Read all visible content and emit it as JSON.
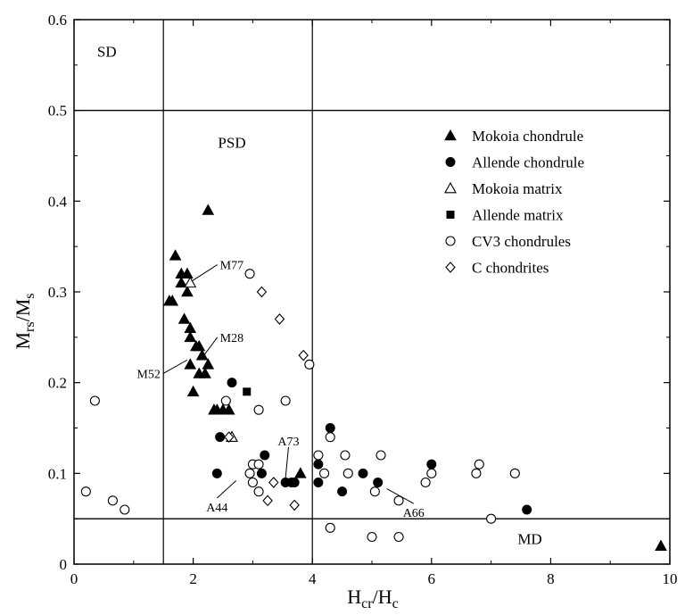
{
  "chart_data": {
    "type": "scatter",
    "xlabel": {
      "main": "H",
      "sub": "cr",
      "sep": "/H",
      "sub2": "c"
    },
    "ylabel": {
      "main": "M",
      "sub": "rs",
      "sep": "/M",
      "sub2": "s"
    },
    "xlim": [
      0,
      10
    ],
    "ylim": [
      0,
      0.6
    ],
    "x_ticks": [
      0,
      2,
      4,
      6,
      8,
      10
    ],
    "y_ticks": [
      0,
      0.1,
      0.2,
      0.3,
      0.4,
      0.5,
      0.6
    ],
    "x_tick_labels": [
      "0",
      "2",
      "4",
      "6",
      "8",
      "10"
    ],
    "y_tick_labels": [
      "0",
      "0.1",
      "0.2",
      "0.3",
      "0.4",
      "0.5",
      "0.6"
    ],
    "reference_lines": {
      "vertical_x": [
        1.5,
        4
      ],
      "horizontal_y": [
        0.5,
        0.05
      ]
    },
    "region_labels": [
      {
        "text": "SD",
        "x": 0.55,
        "y": 0.565
      },
      {
        "text": "PSD",
        "x": 2.65,
        "y": 0.465
      },
      {
        "text": "MD",
        "x": 7.65,
        "y": 0.028
      }
    ],
    "legend_position": "top-right",
    "series": [
      {
        "name": "Mokoia chondrule",
        "marker": "triangle-filled",
        "points": [
          [
            2.25,
            0.39
          ],
          [
            1.6,
            0.29
          ],
          [
            1.65,
            0.29
          ],
          [
            1.7,
            0.34
          ],
          [
            1.8,
            0.31
          ],
          [
            1.8,
            0.32
          ],
          [
            1.9,
            0.32
          ],
          [
            1.9,
            0.3
          ],
          [
            1.85,
            0.27
          ],
          [
            1.95,
            0.26
          ],
          [
            1.95,
            0.25
          ],
          [
            2.05,
            0.24
          ],
          [
            2.1,
            0.24
          ],
          [
            2.15,
            0.23
          ],
          [
            2.1,
            0.21
          ],
          [
            2.2,
            0.21
          ],
          [
            2.25,
            0.22
          ],
          [
            1.95,
            0.22
          ],
          [
            2.0,
            0.19
          ],
          [
            2.35,
            0.17
          ],
          [
            2.4,
            0.17
          ],
          [
            2.5,
            0.17
          ],
          [
            2.6,
            0.17
          ],
          [
            2.65,
            0.14
          ],
          [
            3.8,
            0.1
          ],
          [
            9.85,
            0.02
          ]
        ]
      },
      {
        "name": "Allende chondrule",
        "marker": "circle-filled",
        "points": [
          [
            2.65,
            0.2
          ],
          [
            2.45,
            0.14
          ],
          [
            2.4,
            0.1
          ],
          [
            3.2,
            0.12
          ],
          [
            3.15,
            0.1
          ],
          [
            3.55,
            0.09
          ],
          [
            3.7,
            0.09
          ],
          [
            3.65,
            0.09
          ],
          [
            4.3,
            0.15
          ],
          [
            4.1,
            0.11
          ],
          [
            4.1,
            0.09
          ],
          [
            4.5,
            0.08
          ],
          [
            4.85,
            0.1
          ],
          [
            5.1,
            0.09
          ],
          [
            6.0,
            0.11
          ],
          [
            7.6,
            0.06
          ]
        ]
      },
      {
        "name": "Mokoia matrix",
        "marker": "triangle-open",
        "points": [
          [
            1.95,
            0.31
          ],
          [
            2.65,
            0.14
          ]
        ]
      },
      {
        "name": "Allende matrix",
        "marker": "square-filled",
        "points": [
          [
            2.9,
            0.19
          ]
        ]
      },
      {
        "name": "CV3 chondrules",
        "marker": "circle-open",
        "points": [
          [
            0.35,
            0.18
          ],
          [
            0.2,
            0.08
          ],
          [
            0.65,
            0.07
          ],
          [
            0.85,
            0.06
          ],
          [
            2.95,
            0.32
          ],
          [
            2.55,
            0.18
          ],
          [
            3.1,
            0.17
          ],
          [
            3.55,
            0.18
          ],
          [
            3.95,
            0.22
          ],
          [
            3.0,
            0.11
          ],
          [
            3.1,
            0.11
          ],
          [
            2.95,
            0.1
          ],
          [
            3.0,
            0.09
          ],
          [
            3.1,
            0.08
          ],
          [
            4.1,
            0.12
          ],
          [
            4.3,
            0.14
          ],
          [
            4.2,
            0.1
          ],
          [
            4.55,
            0.12
          ],
          [
            4.6,
            0.1
          ],
          [
            5.15,
            0.12
          ],
          [
            5.05,
            0.08
          ],
          [
            5.45,
            0.07
          ],
          [
            5.9,
            0.09
          ],
          [
            6.0,
            0.1
          ],
          [
            6.75,
            0.1
          ],
          [
            6.8,
            0.11
          ],
          [
            7.4,
            0.1
          ],
          [
            7.0,
            0.05
          ],
          [
            4.3,
            0.04
          ],
          [
            5.0,
            0.03
          ],
          [
            5.45,
            0.03
          ]
        ]
      },
      {
        "name": "C chondrites",
        "marker": "diamond-open",
        "points": [
          [
            3.15,
            0.3
          ],
          [
            3.45,
            0.27
          ],
          [
            3.85,
            0.23
          ],
          [
            3.35,
            0.09
          ],
          [
            3.25,
            0.07
          ],
          [
            3.7,
            0.065
          ],
          [
            2.6,
            0.14
          ]
        ]
      }
    ],
    "annotations": [
      {
        "text": "M77",
        "tx": 2.45,
        "ty": 0.325,
        "ax": 1.98,
        "ay": 0.312,
        "anchor": "start"
      },
      {
        "text": "M28",
        "tx": 2.45,
        "ty": 0.245,
        "ax": 2.18,
        "ay": 0.23,
        "anchor": "start"
      },
      {
        "text": "M52",
        "tx": 1.45,
        "ty": 0.205,
        "ax": 1.9,
        "ay": 0.225,
        "anchor": "end"
      },
      {
        "text": "A73",
        "tx": 3.6,
        "ty": 0.131,
        "ax": 3.55,
        "ay": 0.095,
        "anchor": "middle"
      },
      {
        "text": "A44",
        "tx": 2.4,
        "ty": 0.058,
        "ax": 2.72,
        "ay": 0.092,
        "anchor": "middle"
      },
      {
        "text": "A66",
        "tx": 5.7,
        "ty": 0.052,
        "ax": 5.25,
        "ay": 0.083,
        "anchor": "middle"
      }
    ]
  }
}
